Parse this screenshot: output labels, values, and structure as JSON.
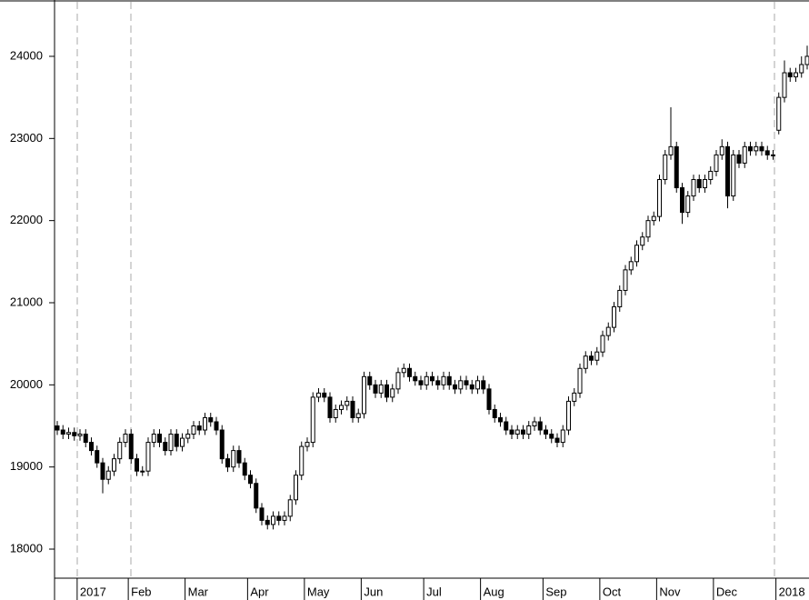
{
  "chart_data": {
    "type": "candlestick",
    "categories": [
      null,
      null,
      null,
      null,
      "2017",
      null,
      null,
      null,
      null,
      null,
      null,
      null,
      null,
      "Feb",
      null,
      null,
      null,
      null,
      null,
      null,
      null,
      null,
      null,
      "Mar",
      null,
      null,
      null,
      null,
      null,
      null,
      null,
      null,
      null,
      null,
      "Apr",
      null,
      null,
      null,
      null,
      null,
      null,
      null,
      null,
      null,
      "May",
      null,
      null,
      null,
      null,
      null,
      null,
      null,
      null,
      null,
      "Jun",
      null,
      null,
      null,
      null,
      null,
      null,
      null,
      null,
      null,
      null,
      "Jul",
      null,
      null,
      null,
      null,
      null,
      null,
      null,
      null,
      null,
      "Aug",
      null,
      null,
      null,
      null,
      null,
      null,
      null,
      null,
      null,
      null,
      "Sep",
      null,
      null,
      null,
      null,
      null,
      null,
      null,
      null,
      null,
      "Oct",
      null,
      null,
      null,
      null,
      null,
      null,
      null,
      null,
      null,
      "Nov",
      null,
      null,
      null,
      null,
      null,
      null,
      null,
      null,
      null,
      "Dec",
      null,
      null,
      null,
      null,
      null,
      null,
      null,
      null,
      null,
      null,
      "2018",
      null,
      null,
      null,
      null,
      null
    ],
    "open": [
      19500,
      19450,
      19400,
      19420,
      19380,
      19400,
      19300,
      19200,
      19050,
      18850,
      18950,
      19100,
      19300,
      19400,
      19100,
      18950,
      18950,
      19300,
      19400,
      19300,
      19200,
      19400,
      19250,
      19350,
      19400,
      19500,
      19450,
      19600,
      19550,
      19450,
      19100,
      19000,
      19200,
      19050,
      18900,
      18800,
      18500,
      18350,
      18300,
      18400,
      18350,
      18400,
      18600,
      18900,
      19250,
      19300,
      19850,
      19900,
      19850,
      19600,
      19700,
      19750,
      19800,
      19600,
      19650,
      20100,
      20000,
      19900,
      20000,
      19850,
      19950,
      20150,
      20200,
      20100,
      20050,
      20000,
      20100,
      20050,
      20000,
      20100,
      20000,
      19950,
      20050,
      20000,
      19950,
      20050,
      19950,
      19700,
      19600,
      19550,
      19450,
      19400,
      19450,
      19400,
      19500,
      19550,
      19450,
      19400,
      19350,
      19300,
      19450,
      19800,
      19900,
      20200,
      20350,
      20300,
      20400,
      20600,
      20700,
      20950,
      21150,
      21400,
      21500,
      21700,
      21800,
      22000,
      22050,
      22500,
      22800,
      22900,
      22400,
      22100,
      22300,
      22500,
      22400,
      22500,
      22600,
      22800,
      22900,
      22300,
      22800,
      22700,
      22900,
      22850,
      22900,
      22850,
      22800,
      23100,
      23500,
      23800,
      23750,
      23800,
      23900
    ],
    "high": [
      19560,
      19510,
      19480,
      19480,
      19460,
      19460,
      19360,
      19260,
      19110,
      19010,
      19160,
      19360,
      19460,
      19460,
      19160,
      19010,
      19360,
      19460,
      19460,
      19360,
      19460,
      19460,
      19410,
      19460,
      19560,
      19560,
      19660,
      19660,
      19610,
      19510,
      19160,
      19260,
      19260,
      19110,
      18960,
      18860,
      18560,
      18410,
      18460,
      18460,
      18460,
      18660,
      18960,
      19310,
      19360,
      19910,
      19960,
      19960,
      19910,
      19760,
      19810,
      19860,
      19860,
      19710,
      20160,
      20160,
      20060,
      20060,
      20060,
      20010,
      20210,
      20260,
      20260,
      20160,
      20110,
      20160,
      20160,
      20110,
      20160,
      20160,
      20060,
      20110,
      20110,
      20060,
      20110,
      20110,
      20010,
      19760,
      19660,
      19610,
      19510,
      19510,
      19510,
      19560,
      19610,
      19610,
      19510,
      19460,
      19410,
      19510,
      19860,
      19960,
      20260,
      20410,
      20410,
      20460,
      20660,
      20760,
      21010,
      21210,
      21460,
      21560,
      21760,
      21860,
      22060,
      22110,
      22560,
      22860,
      23380,
      22960,
      22460,
      22360,
      22560,
      22560,
      22560,
      22660,
      22860,
      22990,
      22960,
      22860,
      22860,
      22960,
      22960,
      22960,
      22960,
      22910,
      22860,
      23560,
      23950,
      23860,
      23860,
      24000,
      24130
    ],
    "low": [
      19390,
      19340,
      19340,
      19320,
      19320,
      19240,
      19140,
      18990,
      18680,
      18790,
      18890,
      19040,
      19240,
      19040,
      18890,
      18890,
      18890,
      19240,
      19240,
      19140,
      19140,
      19190,
      19190,
      19290,
      19340,
      19390,
      19390,
      19490,
      19390,
      19040,
      18940,
      18940,
      18990,
      18840,
      18740,
      18440,
      18290,
      18240,
      18240,
      18290,
      18290,
      18340,
      18540,
      18840,
      19190,
      19240,
      19790,
      19790,
      19540,
      19540,
      19640,
      19690,
      19540,
      19540,
      19590,
      19940,
      19840,
      19840,
      19790,
      19790,
      19890,
      20090,
      20040,
      19990,
      19940,
      19940,
      19990,
      19940,
      19940,
      19940,
      19890,
      19890,
      19940,
      19890,
      19890,
      19890,
      19640,
      19540,
      19490,
      19390,
      19340,
      19340,
      19340,
      19340,
      19440,
      19390,
      19340,
      19290,
      19240,
      19240,
      19390,
      19740,
      19840,
      20140,
      20240,
      20240,
      20340,
      20540,
      20640,
      20890,
      21090,
      21340,
      21440,
      21640,
      21740,
      21940,
      21990,
      22440,
      22740,
      22340,
      21960,
      22040,
      22240,
      22340,
      22340,
      22440,
      22540,
      22740,
      22150,
      22240,
      22640,
      22640,
      22790,
      22790,
      22790,
      22740,
      22740,
      23050,
      23440,
      23690,
      23690,
      23740,
      23840
    ],
    "close": [
      19450,
      19400,
      19420,
      19380,
      19400,
      19300,
      19200,
      19050,
      18850,
      18950,
      19100,
      19300,
      19400,
      19100,
      18950,
      18950,
      19300,
      19400,
      19300,
      19200,
      19400,
      19250,
      19350,
      19400,
      19500,
      19450,
      19600,
      19550,
      19450,
      19100,
      19000,
      19200,
      19050,
      18900,
      18800,
      18500,
      18350,
      18300,
      18400,
      18350,
      18400,
      18600,
      18900,
      19250,
      19300,
      19850,
      19900,
      19850,
      19600,
      19700,
      19750,
      19800,
      19600,
      19650,
      20100,
      20000,
      19900,
      20000,
      19850,
      19950,
      20150,
      20200,
      20100,
      20050,
      20000,
      20100,
      20050,
      20000,
      20100,
      20000,
      19950,
      20050,
      20000,
      19950,
      20050,
      19950,
      19700,
      19600,
      19550,
      19450,
      19400,
      19450,
      19400,
      19500,
      19550,
      19450,
      19400,
      19350,
      19300,
      19450,
      19800,
      19900,
      20200,
      20350,
      20300,
      20400,
      20600,
      20700,
      20950,
      21150,
      21400,
      21500,
      21700,
      21800,
      22000,
      22050,
      22500,
      22800,
      22900,
      22400,
      22100,
      22300,
      22500,
      22400,
      22500,
      22600,
      22800,
      22900,
      22300,
      22800,
      22700,
      22900,
      22850,
      22900,
      22850,
      22800,
      22800,
      23500,
      23800,
      23750,
      23800,
      23900,
      24000
    ],
    "color": "#000000",
    "ylim": [
      17646,
      24686
    ],
    "yticks": [
      18000,
      19000,
      20000,
      21000,
      22000,
      23000,
      24000
    ]
  }
}
